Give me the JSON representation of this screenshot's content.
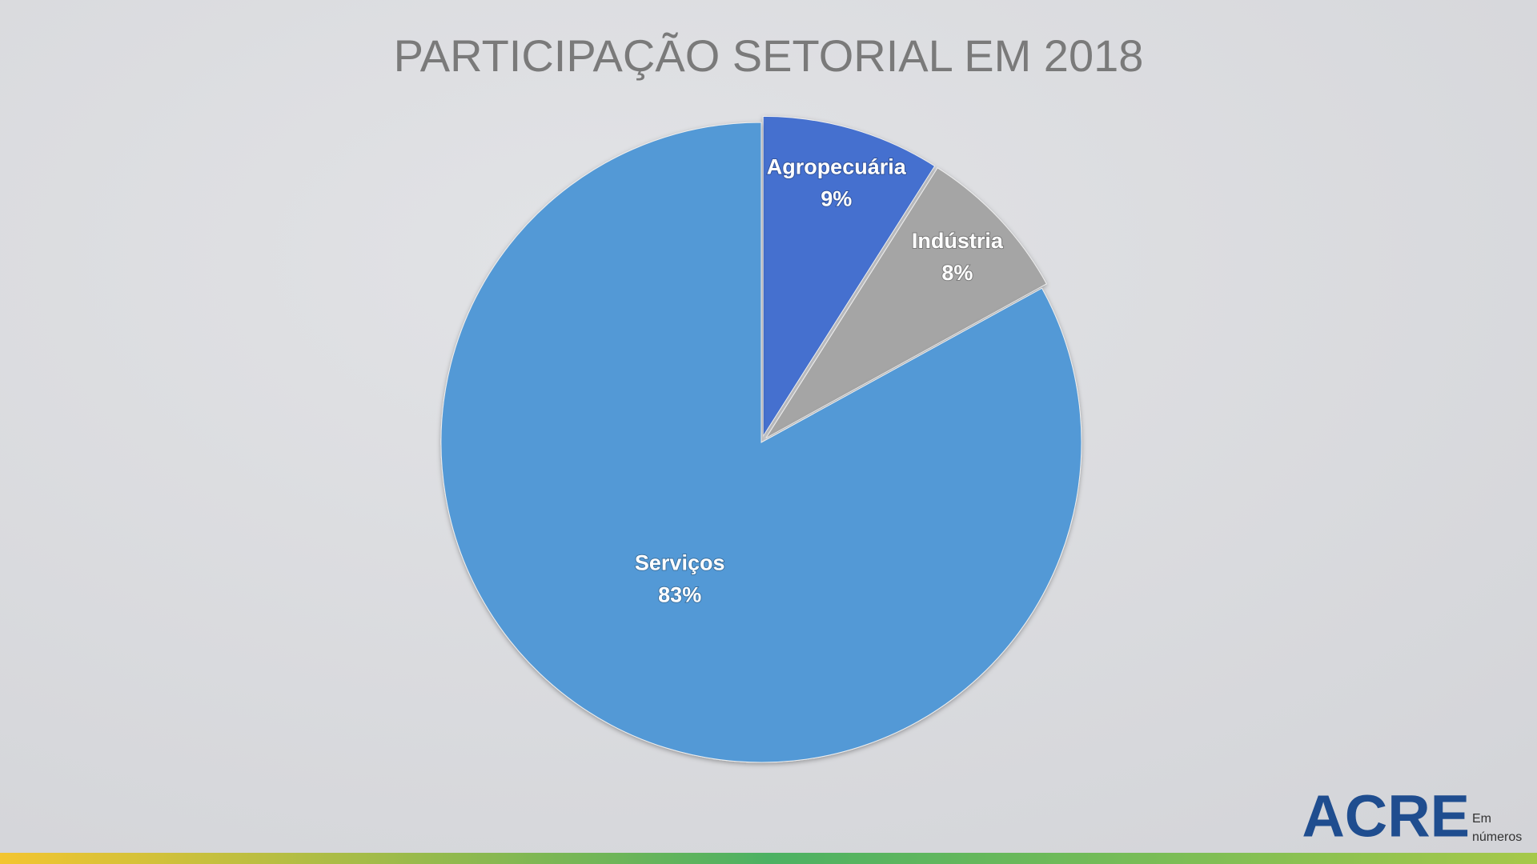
{
  "chart_data": {
    "type": "pie",
    "title": "PARTICIPAÇÃO SETORIAL EM 2018",
    "categories": [
      "Agropecuária",
      "Indústria",
      "Serviços"
    ],
    "values": [
      9,
      8,
      83
    ],
    "value_labels": [
      "9%",
      "8%",
      "83%"
    ],
    "colors": [
      "#4470cf",
      "#a5a5a5",
      "#5299d6"
    ]
  },
  "logo": {
    "name": "ACRE",
    "line_1": "Em",
    "line_2": "números"
  }
}
